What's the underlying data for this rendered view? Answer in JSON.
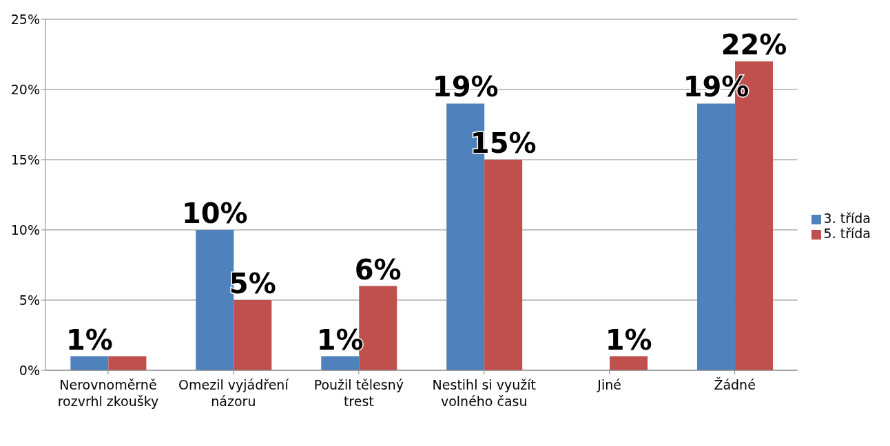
{
  "chart_data": {
    "type": "bar",
    "categories": [
      "Nerovnoměrně rozvrhl zkoušky",
      "Omezil vyjádření názoru",
      "Použil tělesný trest",
      "Nestihl si využít volného času",
      "Jiné",
      "Žádné"
    ],
    "series": [
      {
        "name": "3. třída",
        "color": "#4f81bd",
        "values": [
          1,
          10,
          1,
          19,
          0,
          19
        ],
        "value_labels": [
          "1%",
          "10%",
          "1%",
          "19%",
          null,
          "19%"
        ]
      },
      {
        "name": "5. třída",
        "color": "#c0504d",
        "values": [
          1,
          5,
          6,
          15,
          1,
          22
        ],
        "value_labels": [
          null,
          "5%",
          "6%",
          "15%",
          "1%",
          "22%"
        ]
      }
    ],
    "ylim": [
      0,
      25
    ],
    "yticks": [
      {
        "value": 0,
        "label": "0%"
      },
      {
        "value": 5,
        "label": "5%"
      },
      {
        "value": 10,
        "label": "10%"
      },
      {
        "value": 15,
        "label": "15%"
      },
      {
        "value": 20,
        "label": "20%"
      },
      {
        "value": 25,
        "label": "25%"
      }
    ],
    "grid": "y",
    "legend": "right"
  }
}
